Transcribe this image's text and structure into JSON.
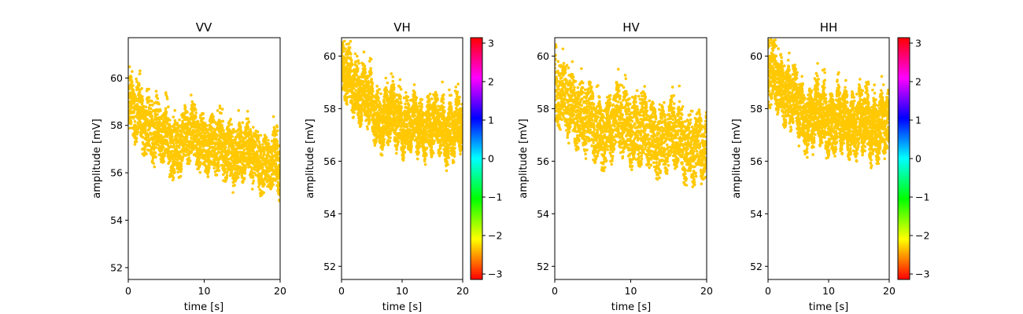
{
  "chart_data": [
    {
      "type": "scatter",
      "title": "VV",
      "xlabel": "time [s]",
      "ylabel": "amplitude [mV]",
      "xlim": [
        0,
        20
      ],
      "ylim": [
        51.5,
        61.7
      ],
      "xticks": [
        "0",
        "10",
        "20"
      ],
      "yticks": [
        "52",
        "54",
        "56",
        "58",
        "60"
      ],
      "color": "#ffc800",
      "trend": [
        [
          0,
          58.7
        ],
        [
          2,
          58.2
        ],
        [
          4,
          57.7
        ],
        [
          6,
          57.1
        ],
        [
          8,
          57.6
        ],
        [
          10,
          57.4
        ],
        [
          12,
          57.0
        ],
        [
          14,
          56.9
        ],
        [
          16,
          56.8
        ],
        [
          18,
          56.5
        ],
        [
          20,
          56.3
        ]
      ],
      "band": [
        -1.1,
        1.2
      ],
      "colorbar": false
    },
    {
      "type": "scatter",
      "title": "VH",
      "xlabel": "time [s]",
      "ylabel": "amplitude [mV]",
      "xlim": [
        0,
        20
      ],
      "ylim": [
        51.5,
        60.7
      ],
      "xticks": [
        "0",
        "10",
        "20"
      ],
      "yticks": [
        "52",
        "54",
        "56",
        "58",
        "60"
      ],
      "color": "#ffc800",
      "trend": [
        [
          0,
          59.3
        ],
        [
          2,
          58.9
        ],
        [
          4,
          58.4
        ],
        [
          6,
          57.6
        ],
        [
          8,
          57.7
        ],
        [
          10,
          57.5
        ],
        [
          12,
          57.3
        ],
        [
          14,
          57.4
        ],
        [
          16,
          57.3
        ],
        [
          18,
          57.2
        ],
        [
          20,
          57.3
        ]
      ],
      "band": [
        -0.9,
        1.1
      ],
      "colorbar": true
    },
    {
      "type": "scatter",
      "title": "HV",
      "xlabel": "time [s]",
      "ylabel": "amplitude [mV]",
      "xlim": [
        0,
        20
      ],
      "ylim": [
        51.5,
        60.7
      ],
      "xticks": [
        "0",
        "10",
        "20"
      ],
      "yticks": [
        "52",
        "54",
        "56",
        "58",
        "60"
      ],
      "color": "#ffc800",
      "trend": [
        [
          0,
          58.6
        ],
        [
          2,
          58.2
        ],
        [
          4,
          57.6
        ],
        [
          6,
          57.1
        ],
        [
          8,
          57.5
        ],
        [
          10,
          57.3
        ],
        [
          12,
          57.0
        ],
        [
          14,
          56.9
        ],
        [
          16,
          56.9
        ],
        [
          18,
          56.6
        ],
        [
          20,
          56.4
        ]
      ],
      "band": [
        -1.1,
        1.3
      ],
      "colorbar": false
    },
    {
      "type": "scatter",
      "title": "HH",
      "xlabel": "time [s]",
      "ylabel": "amplitude [mV]",
      "xlim": [
        0,
        20
      ],
      "ylim": [
        51.5,
        60.7
      ],
      "xticks": [
        "0",
        "10",
        "20"
      ],
      "yticks": [
        "52",
        "54",
        "56",
        "58",
        "60"
      ],
      "color": "#ffc800",
      "trend": [
        [
          0,
          59.3
        ],
        [
          2,
          58.9
        ],
        [
          4,
          58.4
        ],
        [
          6,
          57.6
        ],
        [
          8,
          57.8
        ],
        [
          10,
          57.6
        ],
        [
          12,
          57.4
        ],
        [
          14,
          57.5
        ],
        [
          16,
          57.4
        ],
        [
          18,
          57.3
        ],
        [
          20,
          57.3
        ]
      ],
      "band": [
        -1.0,
        1.2
      ],
      "colorbar": true
    }
  ],
  "colorbar": {
    "range": [
      -3.14159,
      3.14159
    ],
    "ticks": [
      3,
      2,
      1,
      0,
      -1,
      -2,
      -3
    ],
    "tick_labels": [
      "3",
      "2",
      "1",
      "0",
      "−1",
      "−2",
      "−3"
    ],
    "colormap": "hsv"
  }
}
